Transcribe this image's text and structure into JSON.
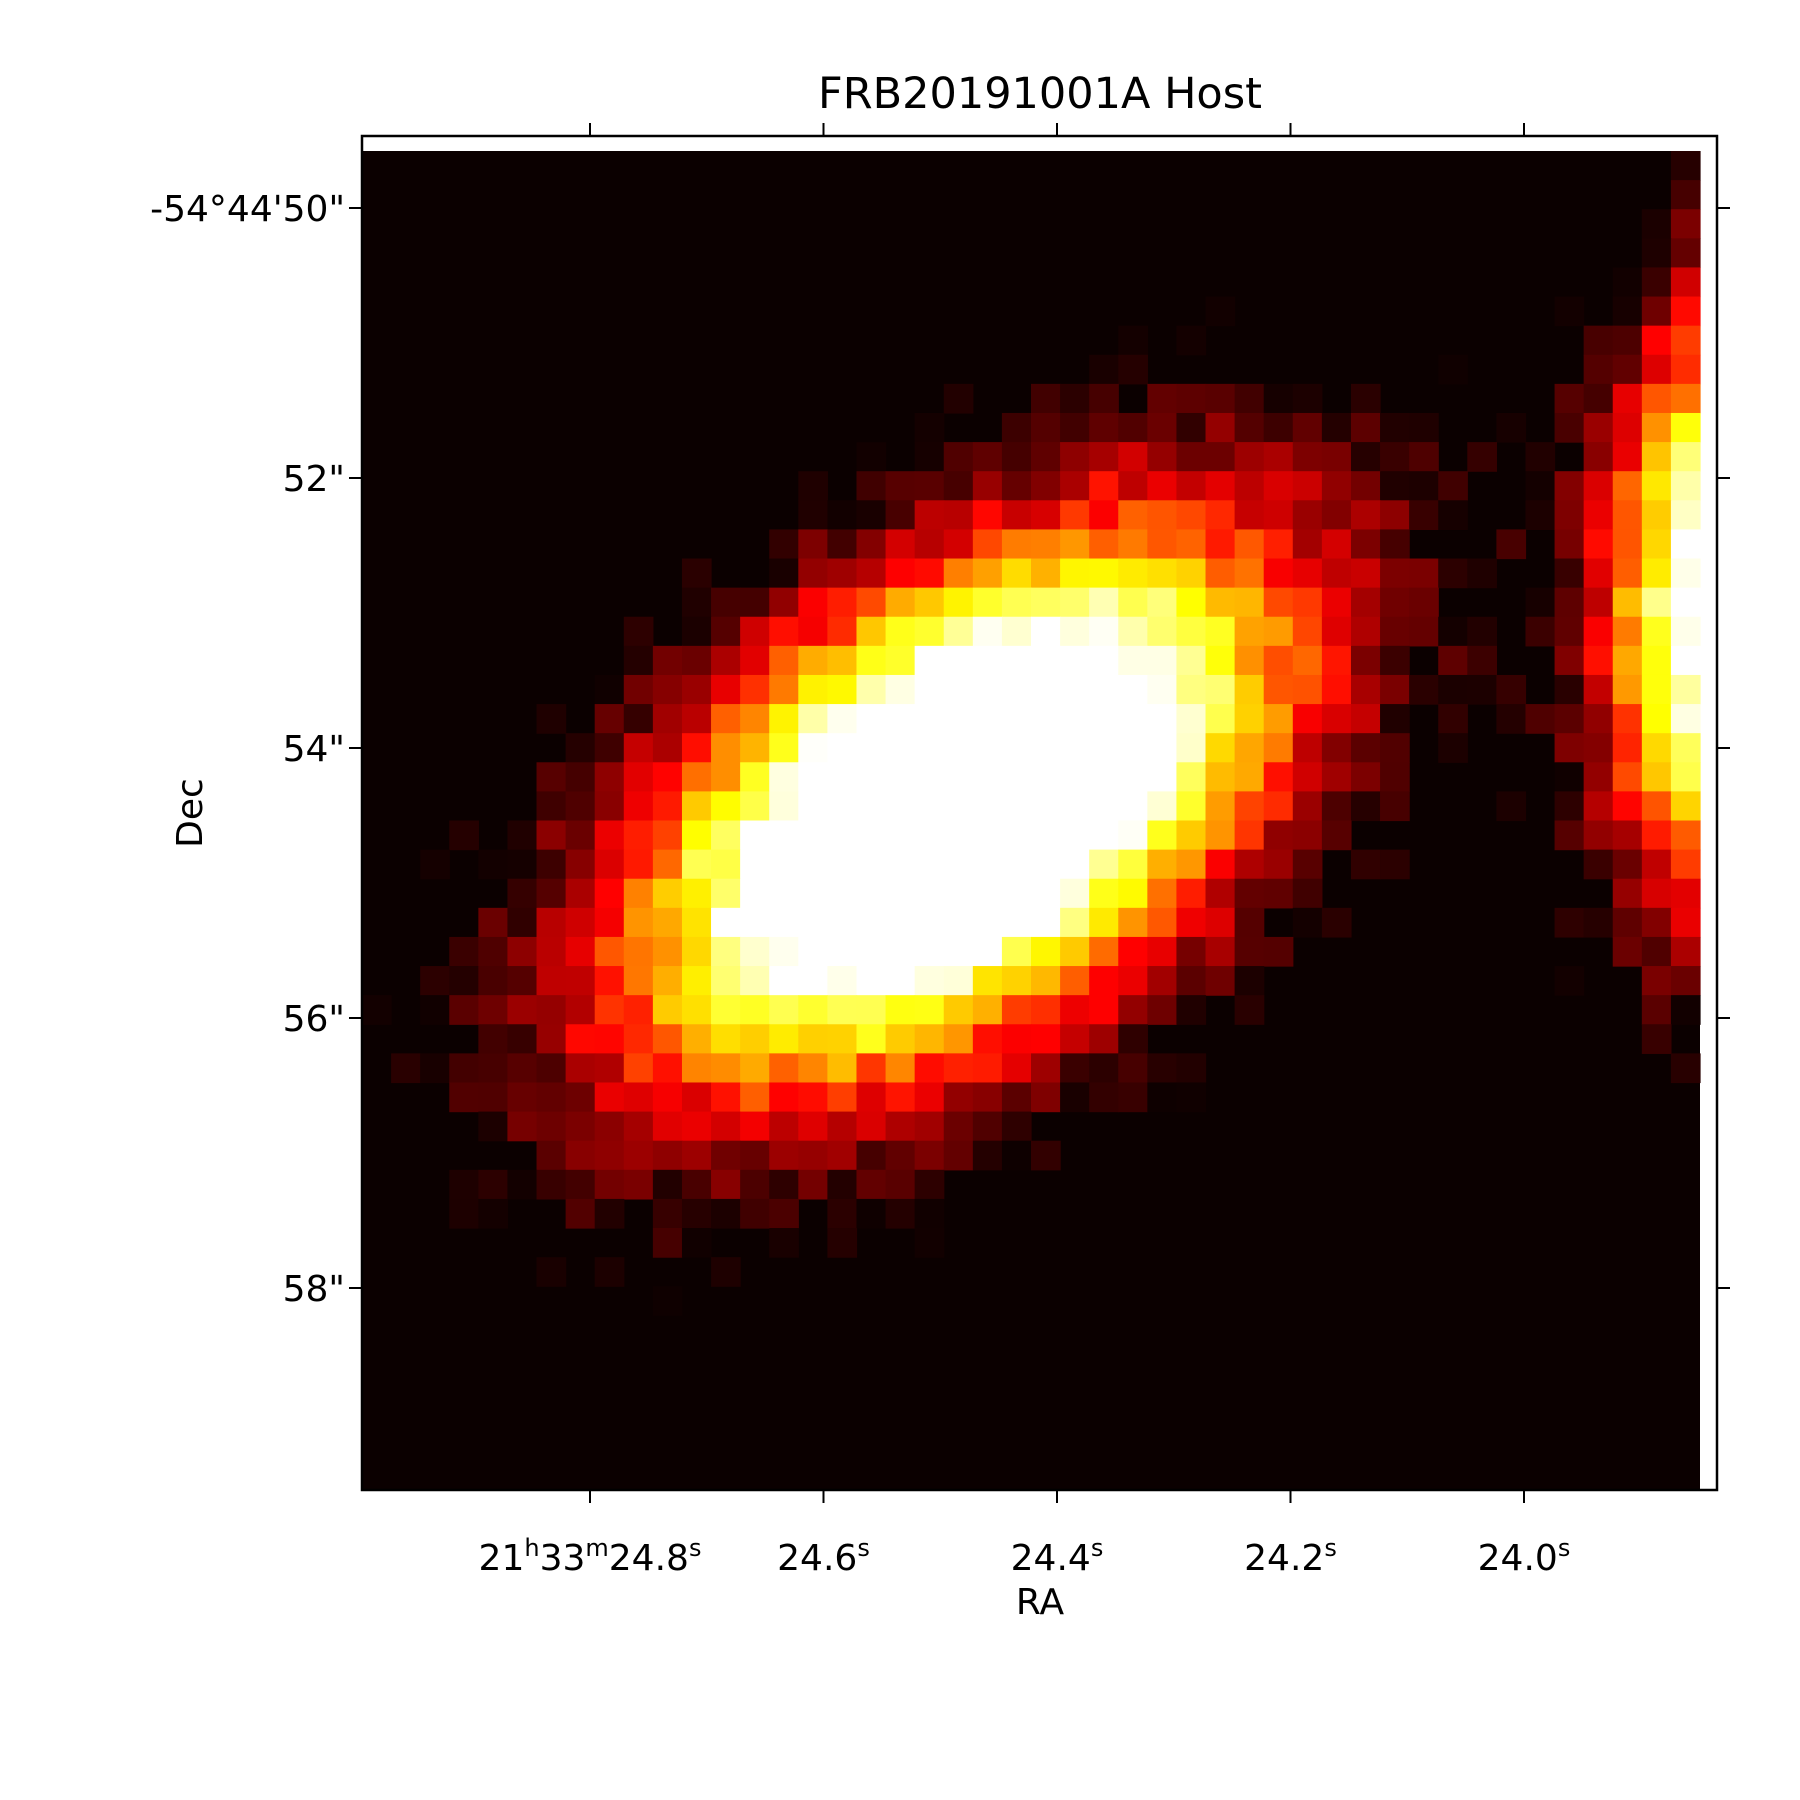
{
  "chart_data": {
    "type": "heatmap",
    "title": "FRB20191001A Host",
    "xlabel": "RA",
    "ylabel": "Dec",
    "colormap": "hot",
    "grid": false,
    "x_ticks": [
      {
        "value_s": 24.8,
        "h": "21",
        "m": "33",
        "s": "24.8"
      },
      {
        "value_s": 24.6,
        "s": "24.6"
      },
      {
        "value_s": 24.4,
        "s": "24.4"
      },
      {
        "value_s": 24.2,
        "s": "24.2"
      },
      {
        "value_s": 24.0,
        "s": "24.0"
      }
    ],
    "x_unit_superscripts": {
      "h": "h",
      "m": "m",
      "s": "s"
    },
    "y_ticks": [
      {
        "value_arcsec": 50,
        "label": "-54°44'50\""
      },
      {
        "value_arcsec": 52,
        "label": "52\""
      },
      {
        "value_arcsec": 54,
        "label": "54\""
      },
      {
        "value_arcsec": 56,
        "label": "56\""
      },
      {
        "value_arcsec": 58,
        "label": "58\""
      }
    ],
    "xlim_seconds": [
      24.995,
      23.841
    ],
    "ylim_arcsec": [
      50.0,
      59.5
    ],
    "description_of_map": "Bright host galaxy centred near RA 24.45s, Dec -54°44'55\", elongated along position angle from upper-right to lower-left; a second bright source is partially visible at the right edge (RA < 24.0s, Dec 50.6\"–55.4\")."
  },
  "colors": {
    "background": "#0b0000",
    "frame": "#000000",
    "page": "#ffffff"
  }
}
